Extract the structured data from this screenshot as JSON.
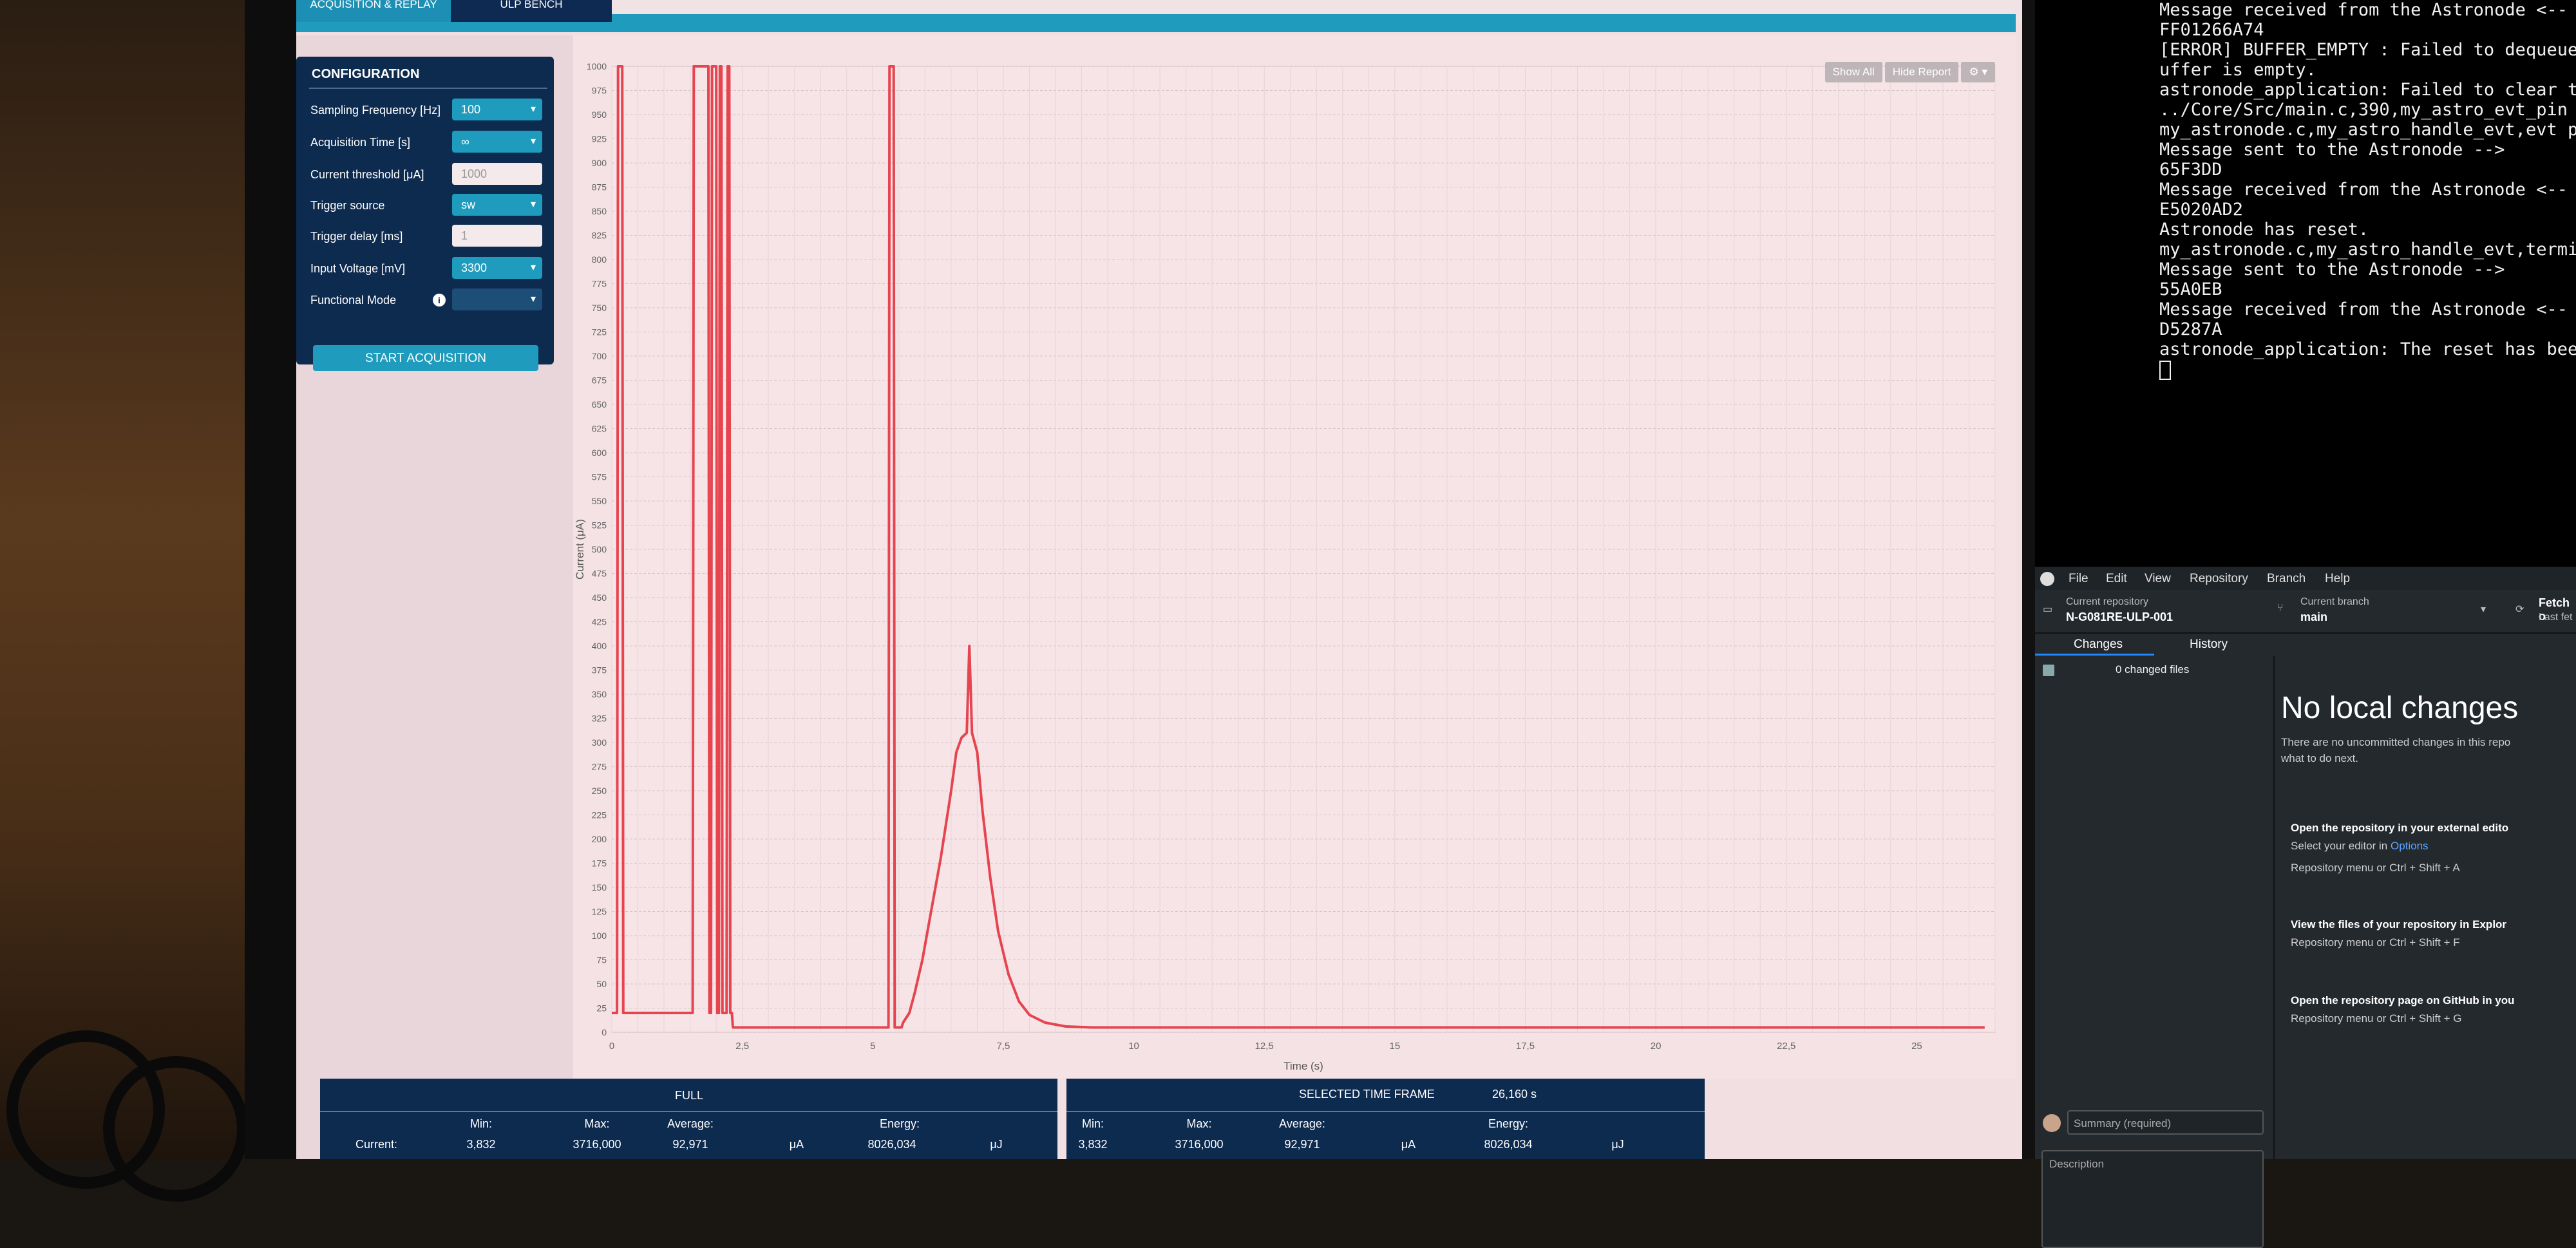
{
  "app": {
    "tabs": [
      {
        "label": "ACQUISITION & REPLAY"
      },
      {
        "label": "ULP BENCH"
      }
    ],
    "config": {
      "title": "CONFIGURATION",
      "rows": [
        {
          "label": "Sampling Frequency [Hz]",
          "value": "100"
        },
        {
          "label": "Acquisition Time [s]",
          "value": "∞"
        },
        {
          "label": "Current threshold [μA]",
          "value": "1000"
        },
        {
          "label": "Trigger source",
          "value": "sw"
        },
        {
          "label": "Trigger delay [ms]",
          "value": "1"
        },
        {
          "label": "Input Voltage [mV]",
          "value": "3300"
        },
        {
          "label": "Functional Mode",
          "value": ""
        }
      ],
      "start_label": "START ACQUISITION"
    },
    "chart_buttons": {
      "show_all": "Show All",
      "hide_report": "Hide Report",
      "settings_icon": "gear-icon"
    },
    "stats": {
      "full_label": "FULL",
      "selected_label": "SELECTED TIME FRAME",
      "selected_value": "26,160 s",
      "row_label": "Current:",
      "headers": {
        "min": "Min:",
        "max": "Max:",
        "average": "Average:",
        "energy": "Energy:"
      },
      "full": {
        "min": "3,832",
        "max": "3716,000",
        "average": "92,971",
        "avg_unit": "μA",
        "energy": "8026,034",
        "energy_unit": "μJ"
      },
      "selected": {
        "min": "3,832",
        "max": "3716,000",
        "average": "92,971",
        "avg_unit": "μA",
        "energy": "8026,034",
        "energy_unit": "μJ"
      }
    }
  },
  "chart_data": {
    "type": "line",
    "xlabel": "Time (s)",
    "ylabel": "Current (μA)",
    "xlim": [
      0,
      26.5
    ],
    "ylim": [
      0,
      1000
    ],
    "xticks": [
      0,
      2.5,
      5,
      7.5,
      10,
      12.5,
      15,
      17.5,
      20,
      22.5,
      25
    ],
    "xtick_labels": [
      "0",
      "2,5",
      "5",
      "7,5",
      "10",
      "12,5",
      "15",
      "17,5",
      "20",
      "22,5",
      "25"
    ],
    "yticks": [
      0,
      25,
      50,
      75,
      100,
      125,
      150,
      175,
      200,
      225,
      250,
      275,
      300,
      325,
      350,
      375,
      400,
      425,
      450,
      475,
      500,
      525,
      550,
      575,
      600,
      625,
      650,
      675,
      700,
      725,
      750,
      775,
      800,
      825,
      850,
      875,
      900,
      925,
      950,
      975,
      1000
    ],
    "grid": true,
    "series_color": "#e64550",
    "series": [
      {
        "x": [
          0,
          0.1,
          0.12,
          0.2,
          0.22,
          1.55,
          1.57,
          1.85,
          1.87,
          1.9,
          1.92,
          2.0,
          2.02,
          2.05,
          2.07,
          2.1,
          2.12,
          2.2,
          2.22,
          2.25,
          2.27,
          2.3,
          2.32,
          5.3,
          5.32,
          5.4,
          5.42,
          5.55,
          5.58,
          5.7,
          5.8,
          5.95,
          6.1,
          6.3,
          6.5,
          6.6,
          6.7,
          6.8,
          6.85,
          6.9,
          7.0,
          7.1,
          7.25,
          7.4,
          7.6,
          7.8,
          8.0,
          8.3,
          8.7,
          9.2,
          10,
          12,
          15,
          20,
          25,
          26.3
        ],
        "y": [
          20,
          20,
          1000,
          1000,
          20,
          20,
          1000,
          1000,
          20,
          20,
          1000,
          1000,
          20,
          20,
          1000,
          1000,
          20,
          20,
          1000,
          1000,
          20,
          20,
          5,
          5,
          1000,
          1000,
          5,
          5,
          10,
          20,
          40,
          75,
          120,
          180,
          250,
          290,
          305,
          310,
          400,
          310,
          290,
          230,
          160,
          105,
          60,
          32,
          18,
          10,
          6,
          5,
          5,
          5,
          5,
          5,
          5,
          5
        ]
      }
    ]
  },
  "terminal": {
    "lines": [
      "Message received from the Astronode <--",
      "FF01266A74",
      "[ERROR] BUFFER_EMPTY : Failed to dequeue a",
      "uffer is empty.",
      "astronode_application: Failed to clear the",
      "../Core/Src/main.c,390,my_astro_evt_pin",
      "my_astronode.c,my_astro_handle_evt,evt pin",
      "Message sent to the Astronode -->",
      "65F3DD",
      "Message received from the Astronode <--",
      "E5020AD2",
      "Astronode has reset.",
      "my_astronode.c,my_astro_handle_evt,termina",
      "Message sent to the Astronode -->",
      "55A0EB",
      "Message received from the Astronode <--",
      "D5287A",
      "astronode_application: The reset has been"
    ]
  },
  "github": {
    "menu": [
      "File",
      "Edit",
      "View",
      "Repository",
      "Branch",
      "Help"
    ],
    "repo_caption": "Current repository",
    "repo_name": "N-G081RE-ULP-001",
    "branch_caption": "Current branch",
    "branch_name": "main",
    "fetch_label": "Fetch o",
    "fetch_sub": "Last fet",
    "tabs": [
      "Changes",
      "History"
    ],
    "changed_files": "0 changed files",
    "no_changes_title": "No local changes",
    "no_changes_text_1": "There are no uncommitted changes in this repo",
    "no_changes_text_2": "what to do next.",
    "actions": [
      {
        "title": "Open the repository in your external edito",
        "line": "Select your editor in ",
        "link": "Options",
        "shortcut": "Repository menu or  Ctrl + Shift + A"
      },
      {
        "title": "View the files of your repository in Explor",
        "line": "",
        "link": "",
        "shortcut": "Repository menu or  Ctrl + Shift + F"
      },
      {
        "title": "Open the repository page on GitHub in you",
        "line": "",
        "link": "",
        "shortcut": "Repository menu or  Ctrl + Shift + G"
      }
    ],
    "summary_placeholder": "Summary (required)",
    "description_placeholder": "Description"
  }
}
